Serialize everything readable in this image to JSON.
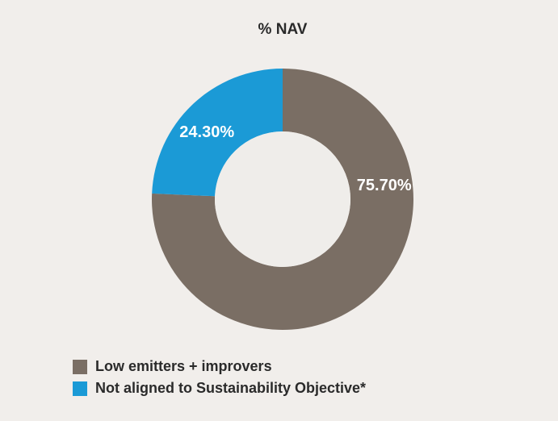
{
  "chart_data": {
    "type": "pie",
    "title": "% NAV",
    "categories": [
      "Low emitters + improvers",
      "Not aligned to Sustainability Objective*"
    ],
    "values": [
      75.7,
      24.3
    ],
    "data_labels": [
      "75.70%",
      "24.30%"
    ],
    "colors": [
      "#7a6e64",
      "#1b9ad6"
    ],
    "donut": true,
    "legend_position": "bottom-left"
  }
}
